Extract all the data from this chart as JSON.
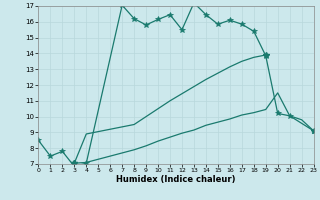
{
  "xlabel": "Humidex (Indice chaleur)",
  "bg_color": "#cce8ec",
  "grid_color": "#b8d8dc",
  "line_color": "#1a7a6e",
  "xlim": [
    0,
    23
  ],
  "ylim": [
    7,
    17
  ],
  "xticks": [
    0,
    1,
    2,
    3,
    4,
    5,
    6,
    7,
    8,
    9,
    10,
    11,
    12,
    13,
    14,
    15,
    16,
    17,
    18,
    19,
    20,
    21,
    22,
    23
  ],
  "yticks": [
    7,
    8,
    9,
    10,
    11,
    12,
    13,
    14,
    15,
    16,
    17
  ],
  "s0_x": [
    0,
    1,
    2,
    3,
    4,
    7,
    8,
    9,
    10,
    11,
    12,
    13,
    14,
    15,
    16,
    17,
    18,
    19,
    20,
    21,
    23
  ],
  "s0_y": [
    8.5,
    7.5,
    7.8,
    6.85,
    7.05,
    17.05,
    16.2,
    15.8,
    16.15,
    16.45,
    15.5,
    17.2,
    16.45,
    15.85,
    16.1,
    15.85,
    15.4,
    13.85,
    10.2,
    10.05,
    9.1
  ],
  "s1_x": [
    3,
    4,
    8,
    9,
    10,
    11,
    12,
    13,
    14,
    15,
    16,
    17,
    18,
    19
  ],
  "s1_y": [
    7.05,
    8.9,
    9.5,
    10.0,
    10.5,
    11.0,
    11.45,
    11.9,
    12.35,
    12.75,
    13.15,
    13.5,
    13.75,
    13.9
  ],
  "s2_x": [
    3,
    4,
    8,
    9,
    10,
    11,
    12,
    13,
    14,
    15,
    16,
    17,
    18,
    19,
    20,
    21,
    22,
    23
  ],
  "s2_y": [
    7.05,
    7.1,
    7.9,
    8.15,
    8.45,
    8.7,
    8.95,
    9.15,
    9.45,
    9.65,
    9.85,
    10.1,
    10.25,
    10.45,
    11.5,
    10.05,
    9.8,
    9.1
  ]
}
